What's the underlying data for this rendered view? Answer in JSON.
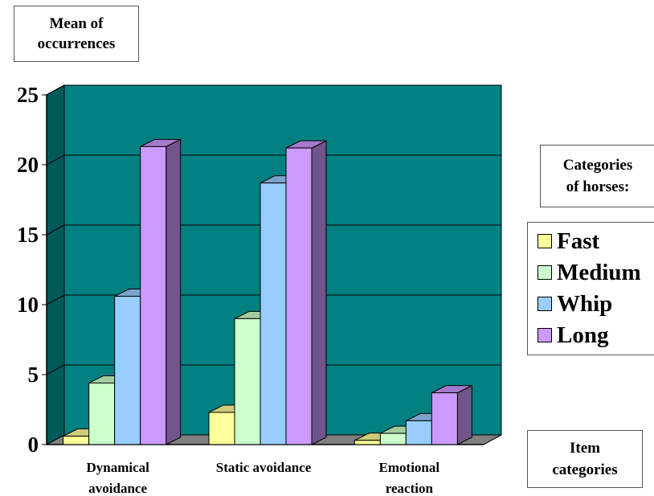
{
  "chart_data": {
    "type": "bar",
    "title": "",
    "ylabel": "Mean of occurrences",
    "xlabel": "Item categories",
    "ylim": [
      0,
      25
    ],
    "yticks": [
      0,
      5,
      10,
      15,
      20,
      25
    ],
    "categories": [
      [
        "Dynamical",
        "avoidance"
      ],
      [
        "Static avoidance"
      ],
      [
        "Emotional",
        "reaction"
      ]
    ],
    "legend_title": "Categories of horses:",
    "grid": true,
    "plot_background": "#008080",
    "series": [
      {
        "name": "Fast",
        "color": "#FFFF99",
        "values": [
          0.6,
          2.3,
          0.3
        ]
      },
      {
        "name": "Medium",
        "color": "#CCFFCC",
        "values": [
          4.4,
          9.0,
          0.8
        ]
      },
      {
        "name": "Whip",
        "color": "#99CCFF",
        "values": [
          10.6,
          18.7,
          1.7
        ]
      },
      {
        "name": "Long",
        "color": "#CC99FF",
        "values": [
          21.3,
          21.2,
          3.7
        ]
      }
    ]
  },
  "labels": {
    "ytitle_line1": "Mean of",
    "ytitle_line2": "occurrences",
    "legtitle_line1": "Categories",
    "legtitle_line2": "of horses:",
    "xtitle_line1": "Item",
    "xtitle_line2": "categories"
  }
}
